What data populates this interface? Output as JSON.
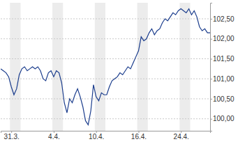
{
  "chart_data": {
    "type": "line",
    "color": "#1a3c8c",
    "grid": true,
    "categories": [
      null,
      null,
      null,
      null,
      "31.3.",
      null,
      null,
      null,
      null,
      null,
      null,
      null,
      null,
      null,
      null,
      null,
      null,
      null,
      null,
      null,
      "4.4.",
      null,
      null,
      null,
      null,
      null,
      null,
      null,
      null,
      null,
      null,
      null,
      null,
      null,
      null,
      null,
      "10.4.",
      null,
      null,
      null,
      null,
      null,
      null,
      null,
      null,
      null,
      null,
      null,
      null,
      null,
      null,
      null,
      "16.4.",
      null,
      null,
      null,
      null,
      null,
      null,
      null,
      null,
      null,
      null,
      null,
      null,
      null,
      null,
      null,
      "24.4.",
      null,
      null,
      null,
      null,
      null,
      null,
      null,
      null,
      null,
      null,
      null
    ],
    "values": [
      101.25,
      101.2,
      101.15,
      101.05,
      100.8,
      100.6,
      100.75,
      101.1,
      101.25,
      101.3,
      101.2,
      101.25,
      101.3,
      101.25,
      101.3,
      101.2,
      101.0,
      100.95,
      101.15,
      101.2,
      101.05,
      101.2,
      101.15,
      100.9,
      100.4,
      100.15,
      100.5,
      100.4,
      100.6,
      100.75,
      100.55,
      100.3,
      99.95,
      99.85,
      100.2,
      100.85,
      100.55,
      100.45,
      100.65,
      100.6,
      100.6,
      100.8,
      100.95,
      101.0,
      101.05,
      101.15,
      101.1,
      101.2,
      101.3,
      101.25,
      101.4,
      101.55,
      101.7,
      102.05,
      101.95,
      102.0,
      102.15,
      102.25,
      102.1,
      102.2,
      102.25,
      102.4,
      102.5,
      102.45,
      102.55,
      102.65,
      102.6,
      102.7,
      102.75,
      102.7,
      102.65,
      102.75,
      102.6,
      102.7,
      102.55,
      102.3,
      102.2,
      102.25,
      102.15,
      102.15
    ],
    "ylim": [
      99.7,
      102.9
    ],
    "yticks": [
      {
        "value": 100,
        "label": "100,00"
      },
      {
        "value": 100.5,
        "label": "100,50"
      },
      {
        "value": 101,
        "label": "101,00"
      },
      {
        "value": 101.5,
        "label": "101,50"
      },
      {
        "value": 102,
        "label": "102,00"
      },
      {
        "value": 102.5,
        "label": "102,50"
      }
    ]
  }
}
